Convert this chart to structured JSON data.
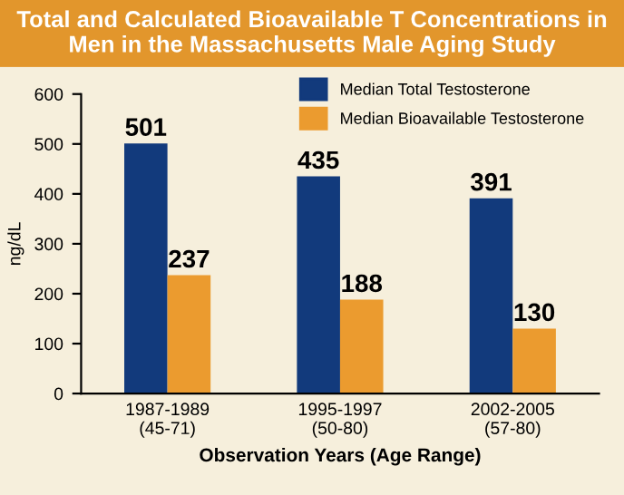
{
  "chart_data": {
    "type": "bar",
    "title": "Total and Calculated Bioavailable T Concentrations in Men in the Massachusetts Male Aging Study",
    "xlabel": "Observation Years (Age Range)",
    "ylabel": "ng/dL",
    "categories": [
      "1987-1989\n(45-71)",
      "1995-1997\n(50-80)",
      "2002-2005\n(57-80)"
    ],
    "series": [
      {
        "name": "Median Total Testosterone",
        "color": "#123a7c",
        "values": [
          501,
          435,
          391
        ]
      },
      {
        "name": "Median Bioavailable Testosterone",
        "color": "#eb9b2f",
        "values": [
          237,
          188,
          130
        ]
      }
    ],
    "ylim": [
      0,
      600
    ],
    "yticks": [
      0,
      100,
      200,
      300,
      400,
      500,
      600
    ],
    "grid": false,
    "legend": "top right",
    "data_labels": true
  }
}
